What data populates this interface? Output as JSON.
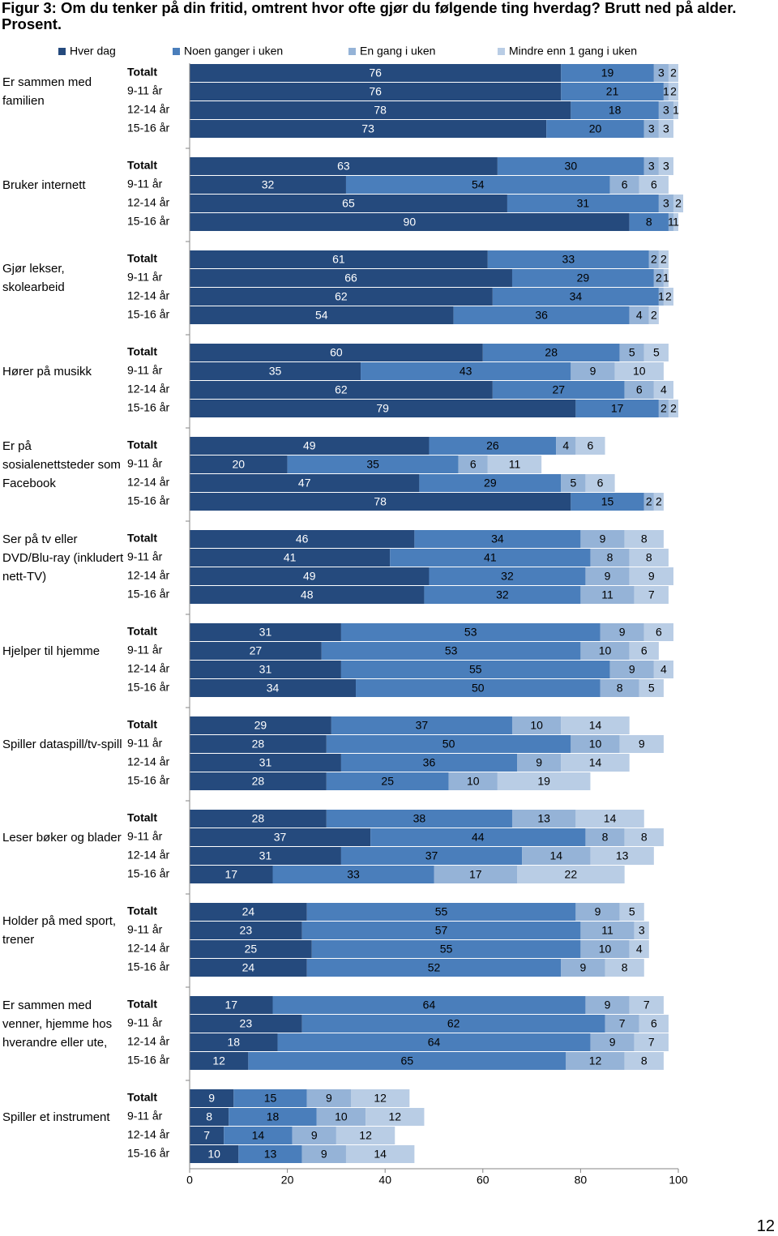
{
  "chart_data": {
    "type": "stacked-barh",
    "title": "Figur 3: Om du tenker på din fritid, omtrent hvor ofte gjør du følgende ting hverdag? Brutt ned på alder. Prosent.",
    "page_number": "12",
    "groups": [
      "Er sammen med familien",
      "Bruker internett",
      "Gjør lekser, skolearbeid",
      "Hører på musikk",
      "Er på sosialenettsteder som Facebook",
      "Ser på tv eller DVD/Blu-ray (inkludert nett-TV)",
      "Hjelper til hjemme",
      "Spiller dataspill/tv-spill",
      "Leser bøker og blader",
      "Holder på med sport, trener",
      "Er sammen med venner, hjemme hos hverandre eller ute,",
      "Spiller et instrument"
    ],
    "categories": [
      "Totalt",
      "9-11 år",
      "12-14 år",
      "15-16 år",
      "Totalt",
      "9-11 år",
      "12-14 år",
      "15-16 år",
      "Totalt",
      "9-11 år",
      "12-14 år",
      "15-16 år",
      "Totalt",
      "9-11 år",
      "12-14 år",
      "15-16 år",
      "Totalt",
      "9-11 år",
      "12-14 år",
      "15-16 år",
      "Totalt",
      "9-11 år",
      "12-14 år",
      "15-16 år",
      "Totalt",
      "9-11 år",
      "12-14 år",
      "15-16 år",
      "Totalt",
      "9-11 år",
      "12-14 år",
      "15-16 år",
      "Totalt",
      "9-11 år",
      "12-14 år",
      "15-16 år",
      "Totalt",
      "9-11 år",
      "12-14 år",
      "15-16 år",
      "Totalt",
      "9-11 år",
      "12-14 år",
      "15-16 år",
      "Totalt",
      "9-11 år",
      "12-14 år",
      "15-16 år"
    ],
    "series": [
      {
        "name": "Hver dag",
        "color": "#254a7d",
        "values": [
          76,
          76,
          78,
          73,
          63,
          32,
          65,
          90,
          61,
          66,
          62,
          54,
          60,
          35,
          62,
          79,
          49,
          20,
          47,
          78,
          46,
          41,
          49,
          48,
          31,
          27,
          31,
          34,
          29,
          28,
          31,
          28,
          28,
          37,
          31,
          17,
          24,
          23,
          25,
          24,
          17,
          23,
          18,
          12,
          9,
          8,
          7,
          10
        ]
      },
      {
        "name": "Noen ganger i uken",
        "color": "#4a7ebb",
        "values": [
          19,
          21,
          18,
          20,
          30,
          54,
          31,
          8,
          33,
          29,
          34,
          36,
          28,
          43,
          27,
          17,
          26,
          35,
          29,
          15,
          34,
          41,
          32,
          32,
          53,
          53,
          55,
          50,
          37,
          50,
          36,
          25,
          38,
          44,
          37,
          33,
          55,
          57,
          55,
          52,
          64,
          62,
          64,
          65,
          15,
          18,
          14,
          13
        ]
      },
      {
        "name": "En gang i uken",
        "color": "#95b3d7",
        "values": [
          3,
          1,
          3,
          3,
          3,
          6,
          3,
          1,
          2,
          2,
          1,
          4,
          5,
          9,
          6,
          2,
          4,
          6,
          5,
          2,
          9,
          8,
          9,
          11,
          9,
          10,
          9,
          8,
          10,
          10,
          9,
          10,
          13,
          8,
          14,
          17,
          9,
          11,
          10,
          9,
          9,
          7,
          9,
          12,
          9,
          10,
          9,
          9
        ]
      },
      {
        "name": "Mindre enn 1 gang i uken",
        "color": "#b9cde5",
        "values": [
          2,
          2,
          1,
          3,
          3,
          6,
          2,
          1,
          2,
          1,
          2,
          2,
          5,
          10,
          4,
          2,
          6,
          11,
          6,
          2,
          8,
          8,
          9,
          7,
          6,
          6,
          4,
          5,
          14,
          9,
          14,
          19,
          14,
          8,
          13,
          22,
          5,
          3,
          4,
          8,
          7,
          6,
          7,
          8,
          12,
          12,
          12,
          14
        ]
      }
    ],
    "xlim": [
      0,
      100
    ],
    "xticks": [
      0,
      20,
      40,
      60,
      80,
      100
    ]
  }
}
